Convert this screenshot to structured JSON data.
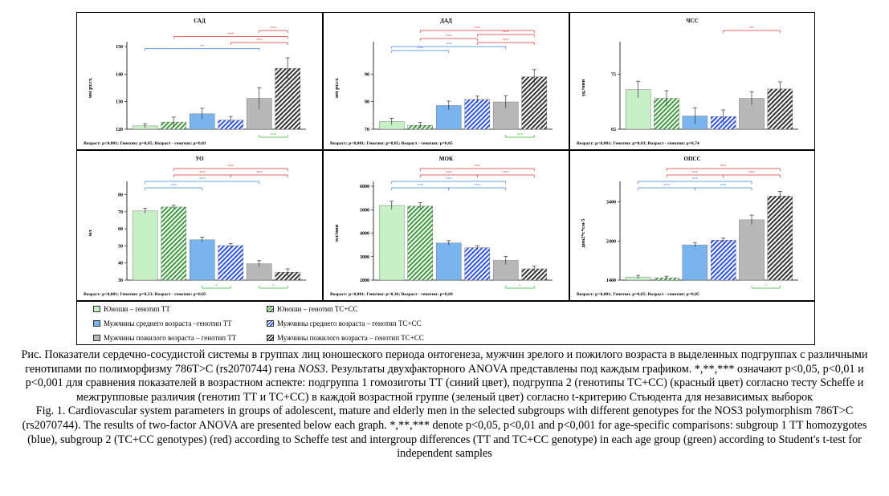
{
  "chart_data": [
    {
      "type": "bar",
      "title": "САД",
      "ylabel": "мм рт.ст.",
      "ylim": [
        120,
        150
      ],
      "yticks": [
        120,
        130,
        140,
        150
      ],
      "values": [
        121.2,
        122.6,
        125.6,
        123.3,
        131.2,
        142.1
      ],
      "errors": [
        0.8,
        1.8,
        2.0,
        1.3,
        3.8,
        3.8
      ],
      "anova_text": "Возраст: p<0,001; Генотип: p=0,05; Возраст - генотип: p=0,01",
      "brackets": [
        {
          "color": "red",
          "label": "***"
        },
        {
          "color": "red",
          "label": "***"
        },
        {
          "color": "red",
          "label": "***"
        },
        {
          "color": "blue",
          "label": "**"
        },
        {
          "color": "green",
          "label": "***"
        }
      ]
    },
    {
      "type": "bar",
      "title": "ДАД",
      "ylabel": "мм рт.ст.",
      "ylim": [
        70,
        100
      ],
      "yticks": [
        70,
        80,
        90
      ],
      "values": [
        72.8,
        71.4,
        78.6,
        80.8,
        79.9,
        89.0
      ],
      "errors": [
        1.2,
        1.0,
        1.6,
        1.2,
        2.3,
        2.6
      ],
      "anova_text": "Возраст: p<0,001; Генотип: p=0,05; Возраст - генотип: p=0,05",
      "brackets": [
        {
          "color": "red",
          "label": "***"
        },
        {
          "color": "red",
          "label": "***"
        },
        {
          "color": "red",
          "label": "***"
        },
        {
          "color": "red",
          "label": "***"
        },
        {
          "color": "blue",
          "label": "***"
        },
        {
          "color": "blue",
          "label": "***"
        },
        {
          "color": "green",
          "label": "***"
        }
      ]
    },
    {
      "type": "bar",
      "title": "ЧСС",
      "ylabel": "уд./мин",
      "ylim": [
        65,
        80
      ],
      "yticks": [
        65,
        75
      ],
      "values": [
        72.2,
        70.6,
        67.4,
        67.3,
        70.6,
        72.3
      ],
      "errors": [
        1.5,
        1.4,
        1.5,
        1.2,
        1.2,
        1.3
      ],
      "anova_text": "Возраст: p<0,001; Генотип: p=0,83; Возраст - генотип: p=0,74",
      "brackets": [
        {
          "color": "red",
          "label": "**"
        }
      ]
    },
    {
      "type": "bar",
      "title": "УО",
      "ylabel": "мл",
      "ylim": [
        30,
        85
      ],
      "yticks": [
        30,
        40,
        50,
        60,
        70,
        80
      ],
      "values": [
        70.5,
        72.8,
        53.6,
        50.2,
        39.6,
        34.6
      ],
      "errors": [
        1.5,
        1.0,
        1.5,
        1.2,
        1.8,
        2.0
      ],
      "anova_text": "Возраст: p<0,001; Генотип: p=0,53; Возраст - генотип: p=0,05",
      "brackets": [
        {
          "color": "red",
          "label": "***"
        },
        {
          "color": "red",
          "label": "***"
        },
        {
          "color": "red",
          "label": "***"
        },
        {
          "color": "blue",
          "label": "***"
        },
        {
          "color": "blue",
          "label": "***"
        },
        {
          "color": "green",
          "label": "*"
        },
        {
          "color": "green",
          "label": "*"
        }
      ]
    },
    {
      "type": "bar",
      "title": "МОК",
      "ylabel": "мл/мин",
      "ylim": [
        2000,
        6000
      ],
      "yticks": [
        2000,
        3000,
        4000,
        5000,
        6000
      ],
      "values": [
        5180,
        5150,
        3580,
        3380,
        2840,
        2480
      ],
      "errors": [
        180,
        150,
        100,
        90,
        170,
        110
      ],
      "anova_text": "Возраст: p<0,001; Генотип: p=0,36; Возраст - генотип: p=0,69",
      "brackets": [
        {
          "color": "red",
          "label": "***"
        },
        {
          "color": "red",
          "label": "***"
        },
        {
          "color": "red",
          "label": "***"
        },
        {
          "color": "blue",
          "label": "***"
        },
        {
          "color": "blue",
          "label": "***"
        },
        {
          "color": "blue",
          "label": "***"
        },
        {
          "color": "green",
          "label": "*"
        }
      ]
    },
    {
      "type": "bar",
      "title": "ОПСС",
      "ylabel": "дин2*с*см-5",
      "ylim": [
        1400,
        3800
      ],
      "yticks": [
        1400,
        2400,
        3400
      ],
      "values": [
        1480,
        1460,
        2300,
        2420,
        2940,
        3550
      ],
      "errors": [
        40,
        40,
        60,
        60,
        120,
        120
      ],
      "anova_text": "Возраст: p<0,001; Генотип: p=0,05; Возраст - генотип: p=0,05",
      "brackets": [
        {
          "color": "red",
          "label": "***"
        },
        {
          "color": "red",
          "label": "***"
        },
        {
          "color": "red",
          "label": "***"
        },
        {
          "color": "blue",
          "label": "***"
        },
        {
          "color": "blue",
          "label": "***"
        },
        {
          "color": "blue",
          "label": "***"
        },
        {
          "color": "green",
          "label": "*"
        }
      ]
    }
  ],
  "legend": [
    {
      "label": "Юноши – генотип ТТ",
      "color": "#c6f0c6",
      "pattern": "solid"
    },
    {
      "label": "Юноши – генотип ТС+СС",
      "color": "#3f9a3f",
      "pattern": "hatch"
    },
    {
      "label": "Мужчины среднего возраста –генотип ТТ",
      "color": "#7ab4ee",
      "pattern": "solid"
    },
    {
      "label": "Мужчины среднего возраста – генотип ТС+СС",
      "color": "#2f53df",
      "pattern": "hatch"
    },
    {
      "label": "Мужчины пожилого возраста – генотип ТТ",
      "color": "#b8b8b8",
      "pattern": "solid"
    },
    {
      "label": "Мужчины пожилого возраста – генотип ТС+СС",
      "color": "#333333",
      "pattern": "hatch"
    }
  ],
  "colors": {
    "red": "#e23434",
    "blue": "#3b7fe0",
    "green": "#2eb82e"
  },
  "caption": {
    "ru_prefix": "Рис. Показатели сердечно-сосудистой системы в группах лиц юношеского периода онтогенеза, мужчин зрелого и пожилого возраста в выделенных подгруппах с различными генотипами по полиморфизму 786T>C (rs2070744) гена ",
    "ru_gene": "NOS3",
    "ru_suffix": ". Результаты двухфакторного ANOVA представлены под каждым графиком. *,**,*** означают p<0,05, p<0,01 и p<0,001 для сравнения показателей в возрастном аспекте: подгруппа 1 гомозиготы ТТ (синий цвет), подгруппа 2 (генотипы ТС+СС) (красный цвет) согласно тесту Scheffe и межгрупповые различия (генотип ТТ и ТС+СС) в каждой возрастной группе (зеленый цвет) согласно t-критерию Стьюдента для независимых выборок",
    "en": "Fig. 1. Cardiovascular system parameters in groups of adolescent, mature and elderly men in the selected subgroups with different genotypes for the NOS3 polymorphism 786T>C (rs2070744). The results of two-factor ANOVA are presented below each graph. *,**,*** denote p<0,05, p<0,01 and p<0,001 for age-specific comparisons: subgroup 1 TT homozygotes (blue), subgroup 2 (TC+CC genotypes) (red) according to Scheffe test and intergroup differences (TT and TC+CC genotype) in each age group (green) according to Student's t-test for independent samples"
  }
}
